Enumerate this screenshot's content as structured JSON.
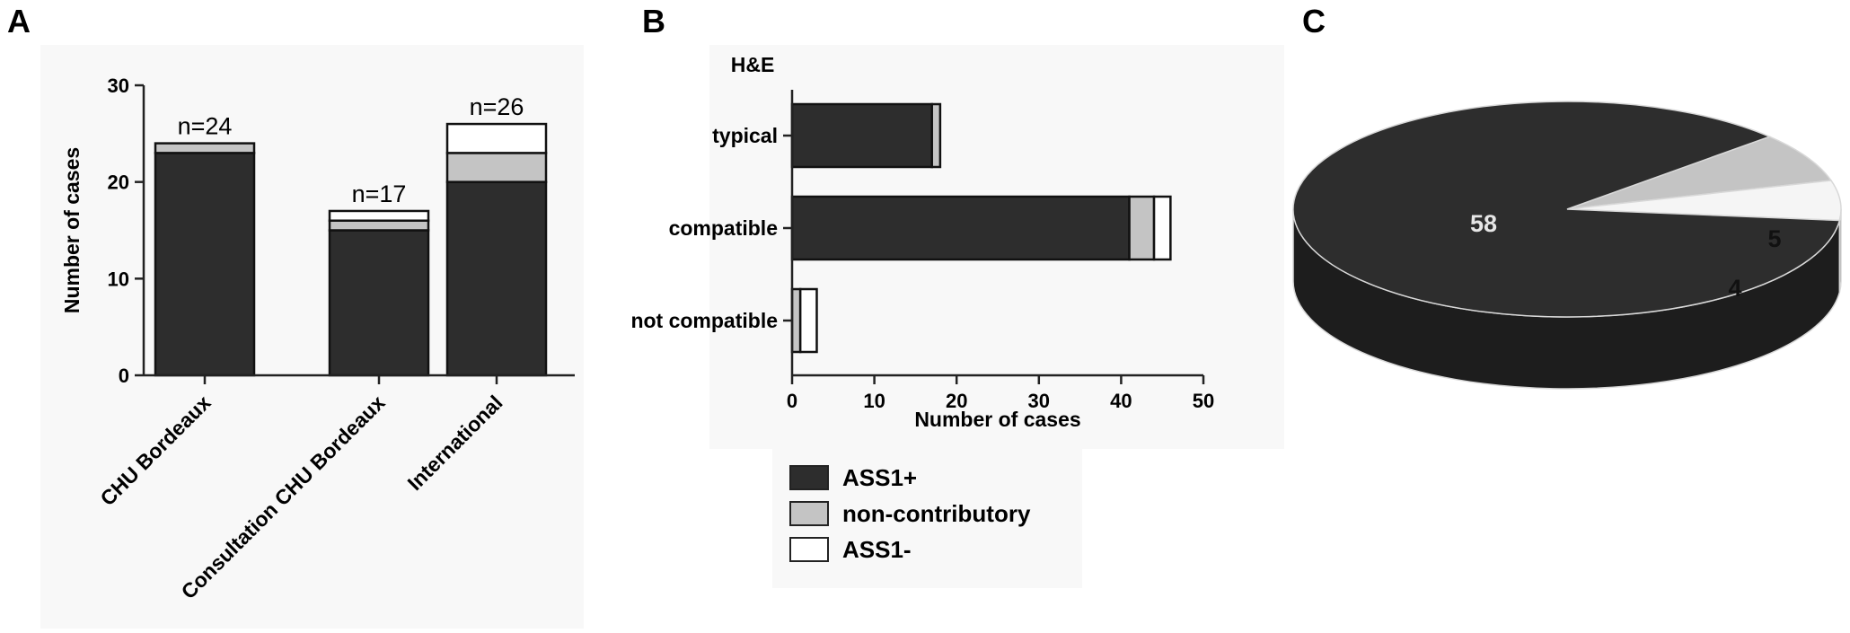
{
  "panels": {
    "a": "A",
    "b": "B",
    "c": "C"
  },
  "colors": {
    "ass1_pos": "#2d2d2d",
    "non_contributory": "#c4c4c4",
    "ass1_neg": "#ffffff"
  },
  "legend": {
    "items": [
      "ASS1+",
      "non-contributory",
      "ASS1-"
    ]
  },
  "chart_data": [
    {
      "type": "bar",
      "stacked": true,
      "orientation": "vertical",
      "categories": [
        "CHU Bordeaux",
        "Consultation CHU Bordeaux",
        "International"
      ],
      "series": [
        {
          "name": "ASS1+",
          "values": [
            23,
            15,
            20
          ]
        },
        {
          "name": "non-contributory",
          "values": [
            1,
            1,
            3
          ]
        },
        {
          "name": "ASS1-",
          "values": [
            0,
            1,
            3
          ]
        }
      ],
      "annotations": [
        "n=24",
        "n=17",
        "n=26"
      ],
      "ylabel": "Number of cases",
      "ylim": [
        0,
        30
      ],
      "yticks": [
        0,
        10,
        20,
        30
      ]
    },
    {
      "type": "bar",
      "stacked": true,
      "orientation": "horizontal",
      "title": "H&E",
      "categories": [
        "typical",
        "compatible",
        "not compatible"
      ],
      "series": [
        {
          "name": "ASS1+",
          "values": [
            17,
            41,
            0
          ]
        },
        {
          "name": "non-contributory",
          "values": [
            1,
            3,
            1
          ]
        },
        {
          "name": "ASS1-",
          "values": [
            0,
            2,
            2
          ]
        }
      ],
      "xlabel": "Number of cases",
      "xlim": [
        0,
        50
      ],
      "xticks": [
        0,
        10,
        20,
        30,
        40,
        50
      ]
    },
    {
      "type": "pie",
      "categories": [
        "ASS1+",
        "non-contributory",
        "ASS1-"
      ],
      "values": [
        58,
        5,
        4
      ],
      "labels": [
        "58",
        "5",
        "4"
      ]
    }
  ]
}
